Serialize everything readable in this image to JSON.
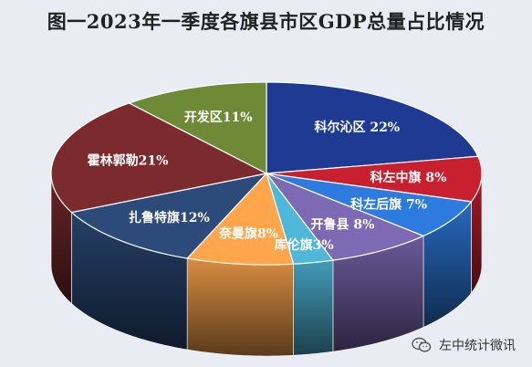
{
  "chart_data": {
    "type": "pie",
    "title": "图一2023年一季度各旗县市区GDP总量占比情况",
    "categories": [
      "科尔沁区",
      "科左中旗",
      "科左后旗",
      "开鲁县",
      "库伦旗",
      "奈曼旗",
      "扎鲁特旗",
      "霍林郭勒",
      "开发区"
    ],
    "values": [
      22,
      8,
      7,
      8,
      3,
      8,
      12,
      21,
      11
    ],
    "labels": [
      "科尔沁区 22%",
      "科左中旗 8%",
      "科左后旗 7%",
      "开鲁县 8%",
      "库伦旗3%",
      "奈曼旗8%",
      "扎鲁特旗12%",
      "霍林郭勒21%",
      "开发区11%"
    ],
    "colors": [
      "#1f3a93",
      "#c8202f",
      "#2e7be0",
      "#7e69b4",
      "#4fb8d8",
      "#ffa64d",
      "#2c4b7a",
      "#7b2b2d",
      "#6f8a36"
    ],
    "style": "3d-pie"
  },
  "watermark": {
    "text": "左中统计微讯",
    "icon": "wechat-icon"
  }
}
